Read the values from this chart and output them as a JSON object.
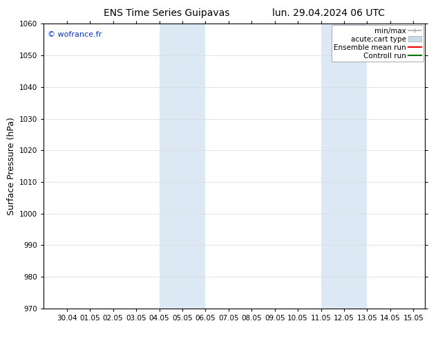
{
  "title_left": "ENS Time Series Guipavas",
  "title_right": "lun. 29.04.2024 06 UTC",
  "ylabel": "Surface Pressure (hPa)",
  "ylim": [
    970,
    1060
  ],
  "yticks": [
    970,
    980,
    990,
    1000,
    1010,
    1020,
    1030,
    1040,
    1050,
    1060
  ],
  "xtick_labels": [
    "30.04",
    "01.05",
    "02.05",
    "03.05",
    "04.05",
    "05.05",
    "06.05",
    "07.05",
    "08.05",
    "09.05",
    "10.05",
    "11.05",
    "12.05",
    "13.05",
    "14.05",
    "15.05"
  ],
  "shaded_color": "#dce9f5",
  "shaded_regions": [
    {
      "xmin": 5.0,
      "xmax": 7.0
    },
    {
      "xmin": 12.0,
      "xmax": 14.0
    }
  ],
  "watermark": "© wofrance.fr",
  "watermark_color": "#0033cc",
  "legend_entries": [
    {
      "label": "min/max"
    },
    {
      "label": "acute;cart type"
    },
    {
      "label": "Ensemble mean run"
    },
    {
      "label": "Controll run"
    }
  ],
  "legend_colors": [
    "#aaaaaa",
    "#c8daea",
    "#ff0000",
    "#007700"
  ],
  "background_color": "#ffffff",
  "grid_color": "#dddddd",
  "spine_color": "#000000",
  "title_fontsize": 10,
  "ylabel_fontsize": 9,
  "tick_labelsize": 7.5,
  "watermark_fontsize": 8,
  "legend_fontsize": 7.5
}
